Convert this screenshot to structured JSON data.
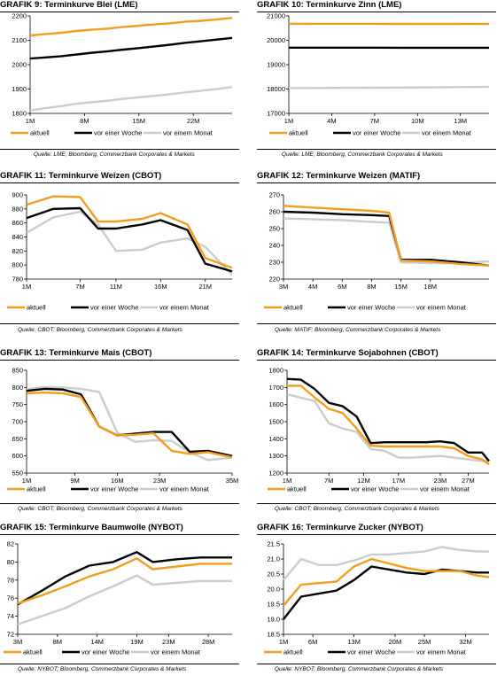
{
  "colors": {
    "aktuell": "#F39C1F",
    "woche": "#000000",
    "monat": "#CCCCCC"
  },
  "legend": {
    "aktuell": "aktuell",
    "woche": "vor einer Woche",
    "monat": "vor einem Monat"
  },
  "panels": [
    {
      "title": "GRAFIK 9: Terminkurve Blei (LME)",
      "source": "Quelle: LME; Bloomberg, Commerzbank Corporates & Markets",
      "chart_data": {
        "type": "line",
        "ylim": [
          1800,
          2200
        ],
        "yticks": [
          1800,
          1900,
          2000,
          2100,
          2200
        ],
        "xticks": [
          "1M",
          "8M",
          "15M",
          "22M"
        ],
        "xtick_pos": [
          0,
          7,
          14,
          21
        ],
        "xlim": [
          0,
          26
        ],
        "series": [
          {
            "name": "aktuell",
            "x": [
              0,
              2,
              4,
              6,
              8,
              10,
              12,
              14,
              16,
              18,
              20,
              22,
              24,
              26
            ],
            "values": [
              2120,
              2126,
              2131,
              2138,
              2144,
              2148,
              2155,
              2160,
              2165,
              2170,
              2176,
              2180,
              2186,
              2192
            ]
          },
          {
            "name": "vor einer Woche",
            "x": [
              0,
              2,
              4,
              6,
              8,
              10,
              12,
              14,
              16,
              18,
              20,
              22,
              24,
              26
            ],
            "values": [
              2025,
              2030,
              2035,
              2042,
              2049,
              2055,
              2062,
              2068,
              2075,
              2082,
              2090,
              2096,
              2103,
              2110
            ]
          },
          {
            "name": "vor einem Monat",
            "x": [
              0,
              2,
              4,
              6,
              8,
              10,
              12,
              14,
              16,
              18,
              20,
              22,
              24,
              26
            ],
            "values": [
              1812,
              1822,
              1830,
              1840,
              1846,
              1852,
              1860,
              1866,
              1872,
              1879,
              1886,
              1893,
              1900,
              1908
            ]
          }
        ]
      }
    },
    {
      "title": "GRAFIK 10: Terminkurve Zinn (LME)",
      "source": "Quelle: LME; Bloomberg, Commerzbank Corporates & Markets",
      "chart_data": {
        "type": "line",
        "ylim": [
          17000,
          21000
        ],
        "yticks": [
          17000,
          18000,
          19000,
          20000,
          21000
        ],
        "xticks": [
          "1M",
          "4M",
          "7M",
          "10M",
          "13M"
        ],
        "xtick_pos": [
          0,
          3,
          6,
          9,
          12
        ],
        "xlim": [
          0,
          14
        ],
        "series": [
          {
            "name": "aktuell",
            "x": [
              0,
              2,
              4,
              6,
              8,
              10,
              12,
              14
            ],
            "values": [
              20680,
              20678,
              20676,
              20675,
              20674,
              20673,
              20672,
              20670
            ]
          },
          {
            "name": "vor einer Woche",
            "x": [
              0,
              2,
              4,
              6,
              8,
              10,
              12,
              14
            ],
            "values": [
              19700,
              19700,
              19698,
              19697,
              19696,
              19695,
              19694,
              19693
            ]
          },
          {
            "name": "vor einem Monat",
            "x": [
              0,
              2,
              4,
              6,
              8,
              10,
              12,
              14
            ],
            "values": [
              18040,
              18045,
              18050,
              18055,
              18060,
              18070,
              18080,
              18090
            ]
          }
        ]
      }
    },
    {
      "title": "GRAFIK 11: Terminkurve Weizen (CBOT)",
      "source": "Quelle: CBOT; Bloomberg, Commerzbank Corporates & Markets",
      "chart_data": {
        "type": "line",
        "ylim": [
          780,
          900
        ],
        "yticks": [
          780,
          800,
          820,
          840,
          860,
          880,
          900
        ],
        "xticks": [
          "1M",
          "7M",
          "11M",
          "16M",
          "21M"
        ],
        "xtick_pos": [
          0,
          6,
          10,
          15,
          20
        ],
        "xlim": [
          0,
          23
        ],
        "series": [
          {
            "name": "aktuell",
            "x": [
              0,
              3,
              6,
              8,
              10,
              13,
              15,
              18,
              20,
              23
            ],
            "values": [
              886,
              898,
              897,
              862,
              862,
              866,
              874,
              858,
              810,
              796
            ]
          },
          {
            "name": "vor einer Woche",
            "x": [
              0,
              3,
              6,
              8,
              10,
              13,
              15,
              18,
              20,
              23
            ],
            "values": [
              867,
              880,
              881,
              852,
              852,
              858,
              864,
              850,
              802,
              791
            ]
          },
          {
            "name": "vor einem Monat",
            "x": [
              0,
              3,
              6,
              8,
              10,
              13,
              15,
              18,
              20,
              23
            ],
            "values": [
              846,
              868,
              876,
              858,
              820,
              822,
              832,
              838,
              826,
              786
            ]
          }
        ]
      }
    },
    {
      "title": "GRAFIK 12: Terminkurve Weizen (MATIF)",
      "source": "Quelle: MATIF; Bloomberg, Commerzbank Corporates & Markets",
      "chart_data": {
        "type": "line",
        "ylim": [
          220,
          270
        ],
        "yticks": [
          220,
          230,
          240,
          250,
          260,
          270
        ],
        "xticks": [
          "3M",
          "4M",
          "6M",
          "8M",
          "15M",
          "18M"
        ],
        "xtick_pos": [
          0,
          1,
          2,
          3,
          4,
          5
        ],
        "xlim": [
          0,
          7
        ],
        "series": [
          {
            "name": "aktuell",
            "x": [
              0,
              1,
              2,
              3,
              3.6,
              4,
              5,
              6,
              7
            ],
            "values": [
              263.5,
              262.5,
              261.5,
              260.5,
              259.5,
              231,
              230.5,
              229,
              228
            ]
          },
          {
            "name": "vor einer Woche",
            "x": [
              0,
              1,
              2,
              3,
              3.6,
              4,
              5,
              6,
              7
            ],
            "values": [
              260,
              259.5,
              258.5,
              258,
              257.5,
              231.5,
              231.5,
              230,
              228
            ]
          },
          {
            "name": "vor einem Monat",
            "x": [
              0,
              1,
              2,
              3,
              3.6,
              4,
              5,
              6,
              7
            ],
            "values": [
              256,
              255.5,
              255,
              254,
              253.5,
              230,
              229.5,
              229.5,
              230.5
            ]
          }
        ]
      }
    },
    {
      "title": "GRAFIK 13: Terminkurve Mais (CBOT)",
      "source": "Quelle: CBOT; Bloomberg, Commerzbank Corporates & Markets",
      "chart_data": {
        "type": "line",
        "ylim": [
          550,
          850
        ],
        "yticks": [
          550,
          600,
          650,
          700,
          750,
          800,
          850
        ],
        "xticks": [
          "1M",
          "9M",
          "16M",
          "23M",
          "35M"
        ],
        "xtick_pos": [
          0,
          8,
          15,
          22,
          34
        ],
        "xlim": [
          0,
          34
        ],
        "series": [
          {
            "name": "aktuell",
            "x": [
              0,
              3,
              6,
              9,
              12,
              15,
              18,
              21,
              24,
              27,
              30,
              34
            ],
            "values": [
              783,
              785,
              783,
              772,
              686,
              660,
              662,
              666,
              615,
              606,
              611,
              596
            ]
          },
          {
            "name": "vor einer Woche",
            "x": [
              0,
              3,
              6,
              9,
              12,
              15,
              18,
              21,
              24,
              27,
              30,
              34
            ],
            "values": [
              790,
              796,
              794,
              780,
              686,
              660,
              665,
              670,
              670,
              612,
              615,
              600
            ]
          },
          {
            "name": "vor einem Monat",
            "x": [
              0,
              3,
              6,
              9,
              12,
              15,
              18,
              21,
              24,
              27,
              30,
              34
            ],
            "values": [
              795,
              801,
              800,
              796,
              787,
              668,
              641,
              646,
              644,
              610,
              588,
              595
            ]
          }
        ]
      }
    },
    {
      "title": "GRAFIK 14: Terminkurve Sojabohnen (CBOT)",
      "source": "Quelle: CBOT; Bloomberg, Commerzbank Corporates & Markets",
      "chart_data": {
        "type": "line",
        "ylim": [
          1200,
          1800
        ],
        "yticks": [
          1200,
          1300,
          1400,
          1500,
          1600,
          1700,
          1800
        ],
        "xticks": [
          "1M",
          "7M",
          "12M",
          "17M",
          "23M",
          "27M"
        ],
        "xtick_pos": [
          0,
          6,
          11,
          16,
          22,
          26
        ],
        "xlim": [
          0,
          29
        ],
        "series": [
          {
            "name": "aktuell",
            "x": [
              0,
              2,
              4,
              6,
              8,
              10,
              12,
              14,
              16,
              18,
              20,
              22,
              24,
              26,
              28,
              29
            ],
            "values": [
              1710,
              1710,
              1640,
              1575,
              1550,
              1460,
              1360,
              1355,
              1355,
              1355,
              1355,
              1355,
              1345,
              1300,
              1280,
              1250
            ]
          },
          {
            "name": "vor einer Woche",
            "x": [
              0,
              2,
              4,
              6,
              8,
              10,
              12,
              14,
              16,
              18,
              20,
              22,
              24,
              26,
              28,
              29
            ],
            "values": [
              1750,
              1745,
              1690,
              1610,
              1590,
              1530,
              1375,
              1380,
              1380,
              1380,
              1380,
              1385,
              1375,
              1320,
              1320,
              1270
            ]
          },
          {
            "name": "vor einem Monat",
            "x": [
              0,
              2,
              4,
              6,
              8,
              10,
              12,
              14,
              16,
              18,
              20,
              22,
              24,
              26,
              28,
              29
            ],
            "values": [
              1660,
              1640,
              1620,
              1490,
              1460,
              1440,
              1340,
              1330,
              1290,
              1290,
              1295,
              1300,
              1290,
              1280,
              1270,
              1270
            ]
          }
        ]
      }
    },
    {
      "title": "GRAFIK 15: Terminkurve Baumwolle (NYBOT)",
      "source": "Quelle: NYBOT; Bloomberg, Commerzbank Corporates & Markets",
      "chart_data": {
        "type": "line",
        "ylim": [
          72,
          82
        ],
        "yticks": [
          72,
          74,
          76,
          78,
          80,
          82
        ],
        "xticks": [
          "3M",
          "8M",
          "14M",
          "19M",
          "23M",
          "28M"
        ],
        "xtick_pos": [
          0,
          5,
          10,
          15,
          19,
          24
        ],
        "xlim": [
          0,
          27
        ],
        "series": [
          {
            "name": "aktuell",
            "x": [
              0,
              3,
              6,
              9,
              12,
              15,
              17,
              20,
              23,
              25,
              27
            ],
            "values": [
              75.4,
              76.3,
              77.3,
              78.4,
              79.2,
              80.4,
              79.2,
              79.5,
              79.8,
              79.8,
              79.8
            ]
          },
          {
            "name": "vor einer Woche",
            "x": [
              0,
              3,
              6,
              9,
              12,
              15,
              17,
              20,
              23,
              25,
              27
            ],
            "values": [
              75.3,
              76.8,
              78.4,
              79.6,
              80.0,
              81.1,
              80.0,
              80.3,
              80.5,
              80.5,
              80.5
            ]
          },
          {
            "name": "vor einem Monat",
            "x": [
              0,
              3,
              6,
              9,
              12,
              15,
              17,
              20,
              23,
              25,
              27
            ],
            "values": [
              73.1,
              74.0,
              74.9,
              76.2,
              77.3,
              78.5,
              77.5,
              77.7,
              77.9,
              77.9,
              77.9
            ]
          }
        ]
      }
    },
    {
      "title": "GRAFIK 16: Terminkurve Zucker (NYBOT)",
      "source": "Quelle: NYBOT; Bloomberg, Commerzbank Corporates & Markets",
      "chart_data": {
        "type": "line",
        "ylim": [
          18.5,
          21.5
        ],
        "yticks": [
          18.5,
          19.0,
          19.5,
          20.0,
          20.5,
          21.0,
          21.5
        ],
        "xticks": [
          "1M",
          "6M",
          "13M",
          "20M",
          "25M",
          "32M"
        ],
        "xtick_pos": [
          0,
          5,
          12,
          19,
          24,
          31
        ],
        "xlim": [
          0,
          35
        ],
        "series": [
          {
            "name": "aktuell",
            "x": [
              0,
              3,
              6,
              9,
              12,
              15,
              18,
              21,
              24,
              27,
              30,
              33,
              35
            ],
            "values": [
              19.45,
              20.15,
              20.2,
              20.25,
              20.75,
              21.0,
              20.85,
              20.7,
              20.6,
              20.6,
              20.6,
              20.45,
              20.4
            ]
          },
          {
            "name": "vor einer Woche",
            "x": [
              0,
              3,
              6,
              9,
              12,
              15,
              18,
              21,
              24,
              27,
              30,
              33,
              35
            ],
            "values": [
              19.0,
              19.75,
              19.85,
              19.95,
              20.3,
              20.75,
              20.65,
              20.55,
              20.5,
              20.65,
              20.6,
              20.55,
              20.55
            ]
          },
          {
            "name": "vor einem Monat",
            "x": [
              0,
              3,
              6,
              9,
              12,
              15,
              18,
              21,
              24,
              27,
              30,
              33,
              35
            ],
            "values": [
              20.3,
              21.0,
              20.8,
              20.8,
              20.95,
              21.15,
              21.15,
              21.2,
              21.25,
              21.4,
              21.3,
              21.25,
              21.25
            ]
          }
        ]
      }
    }
  ]
}
